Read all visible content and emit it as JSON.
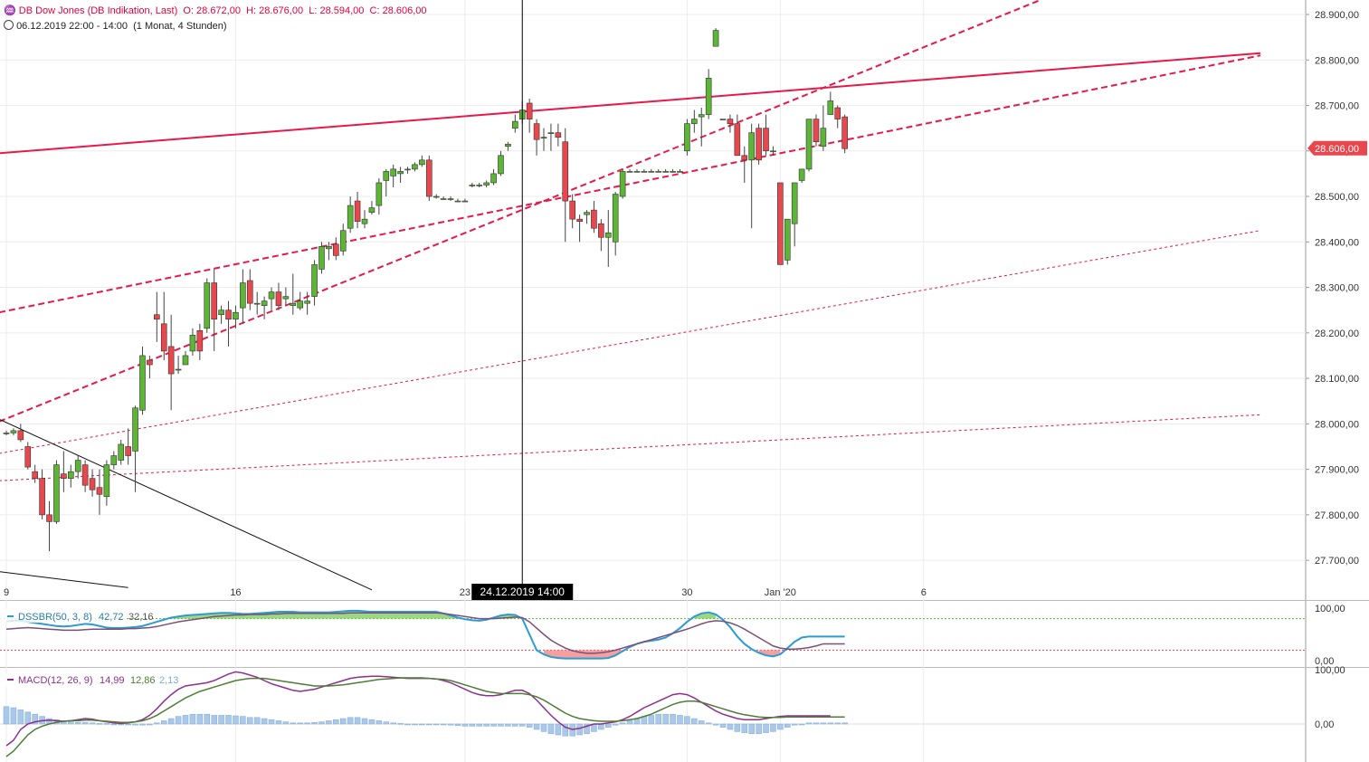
{
  "header": {
    "instrument_icon": "chart-logo-icon",
    "instrument": "DB Dow Jones (DB Indikation, Last)",
    "open": "O: 28.672,00",
    "high": "H: 28.676,00",
    "low": "L: 28.594,00",
    "close": "C: 28.606,00",
    "range_icon": "clock-icon",
    "range": "06.12.2019 22:00 - 14:00",
    "interval": "(1 Monat, 4 Stunden)"
  },
  "colors": {
    "up": "#5cb534",
    "down": "#e8484d",
    "trendline": "#e8194a",
    "crosshair": "#000000",
    "dss_fast": "#2b9bd2",
    "dss_slow": "#7a4f7a",
    "macd": "#8e2f8e",
    "signal": "#4e7d35",
    "histogram": "#a9c8ea"
  },
  "price_panel": {
    "current_price": "28.606,00",
    "crosshair_label": "24.12.2019 14:00"
  },
  "dss_panel": {
    "name": "DSSBR(50, 3, 8)",
    "value1": "42,72",
    "value2": "32,16",
    "ticks": [
      "100,00",
      "0,00"
    ]
  },
  "macd_panel": {
    "name": "MACD(12, 26, 9)",
    "value1": "14,99",
    "value2": "12,86",
    "value3": "2,13",
    "ticks": [
      "100,00",
      "0,00"
    ]
  },
  "chart_data": {
    "type": "candlestick",
    "y_ticks": [
      "28.900,00",
      "28.800,00",
      "28.700,00",
      "28.600,00",
      "28.500,00",
      "28.400,00",
      "28.300,00",
      "28.200,00",
      "28.100,00",
      "28.000,00",
      "27.900,00",
      "27.800,00",
      "27.700,00"
    ],
    "y_tick_values": [
      28900,
      28800,
      28700,
      28600,
      28500,
      28400,
      28300,
      28200,
      28100,
      28000,
      27900,
      27800,
      27700
    ],
    "ylim": [
      27640,
      28935
    ],
    "x_ticks": [
      "9",
      "16",
      "23",
      "30",
      "Jan '20",
      "6"
    ],
    "x_tick_bars": [
      0,
      32,
      64,
      95,
      108,
      128
    ],
    "candles": [
      [
        27980,
        27985,
        27975,
        27980
      ],
      [
        27980,
        27990,
        27975,
        27985
      ],
      [
        27985,
        28000,
        27960,
        27965
      ],
      [
        27950,
        27960,
        27900,
        27905
      ],
      [
        27895,
        27910,
        27870,
        27880
      ],
      [
        27880,
        27900,
        27790,
        27800
      ],
      [
        27800,
        27830,
        27720,
        27785
      ],
      [
        27785,
        27920,
        27780,
        27910
      ],
      [
        27890,
        27940,
        27850,
        27880
      ],
      [
        27880,
        27910,
        27860,
        27895
      ],
      [
        27895,
        27930,
        27880,
        27920
      ],
      [
        27910,
        27920,
        27850,
        27865
      ],
      [
        27880,
        27900,
        27840,
        27855
      ],
      [
        27860,
        27900,
        27800,
        27845
      ],
      [
        27840,
        27920,
        27820,
        27910
      ],
      [
        27910,
        27940,
        27900,
        27930
      ],
      [
        27920,
        27965,
        27910,
        27955
      ],
      [
        27950,
        27990,
        27910,
        27930
      ],
      [
        27940,
        28040,
        27850,
        28035
      ],
      [
        28030,
        28170,
        28020,
        28150
      ],
      [
        28140,
        28150,
        28100,
        28130
      ],
      [
        28240,
        28290,
        28180,
        28230
      ],
      [
        28220,
        28290,
        28140,
        28160
      ],
      [
        28170,
        28240,
        28030,
        28110
      ],
      [
        28120,
        28150,
        28110,
        28120
      ],
      [
        28130,
        28160,
        28130,
        28150
      ],
      [
        28160,
        28210,
        28150,
        28195
      ],
      [
        28205,
        28220,
        28140,
        28160
      ],
      [
        28210,
        28320,
        28200,
        28310
      ],
      [
        28310,
        28340,
        28160,
        28230
      ],
      [
        28240,
        28260,
        28220,
        28250
      ],
      [
        28250,
        28270,
        28170,
        28230
      ],
      [
        28230,
        28260,
        28210,
        28245
      ],
      [
        28255,
        28340,
        28220,
        28310
      ],
      [
        28315,
        28340,
        28250,
        28265
      ],
      [
        28265,
        28290,
        28240,
        28265
      ],
      [
        28260,
        28280,
        28230,
        28270
      ],
      [
        28275,
        28300,
        28250,
        28290
      ],
      [
        28290,
        28310,
        28250,
        28260
      ],
      [
        28275,
        28300,
        28260,
        28280
      ],
      [
        28260,
        28330,
        28240,
        28265
      ],
      [
        28255,
        28290,
        28250,
        28270
      ],
      [
        28265,
        28290,
        28240,
        28270
      ],
      [
        28280,
        28360,
        28260,
        28350
      ],
      [
        28340,
        28400,
        28330,
        28390
      ],
      [
        28385,
        28400,
        28360,
        28390
      ],
      [
        28395,
        28410,
        28360,
        28370
      ],
      [
        28380,
        28440,
        28370,
        28425
      ],
      [
        28430,
        28500,
        28420,
        28480
      ],
      [
        28490,
        28510,
        28430,
        28445
      ],
      [
        28440,
        28470,
        28430,
        28450
      ],
      [
        28465,
        28490,
        28460,
        28475
      ],
      [
        28480,
        28540,
        28460,
        28530
      ],
      [
        28535,
        28560,
        28500,
        28555
      ],
      [
        28545,
        28570,
        28520,
        28560
      ],
      [
        28550,
        28565,
        28530,
        28555
      ],
      [
        28560,
        28565,
        28550,
        28560
      ],
      [
        28560,
        28575,
        28555,
        28570
      ],
      [
        28570,
        28590,
        28565,
        28580
      ],
      [
        28580,
        28590,
        28490,
        28500
      ],
      [
        28500,
        28505,
        28495,
        28500
      ],
      [
        28495,
        28500,
        28495,
        28495
      ],
      [
        28495,
        28500,
        28490,
        28495
      ],
      [
        28490,
        28495,
        28490,
        28490
      ],
      [
        28490,
        28495,
        28490,
        28490
      ],
      [
        28525,
        28530,
        28520,
        28525
      ],
      [
        28525,
        28530,
        28520,
        28525
      ],
      [
        28525,
        28535,
        28520,
        28530
      ],
      [
        28530,
        28560,
        28525,
        28550
      ],
      [
        28550,
        28600,
        28545,
        28590
      ],
      [
        28610,
        28620,
        28600,
        28615
      ],
      [
        28650,
        28680,
        28640,
        28665
      ],
      [
        28670,
        28710,
        28660,
        28690
      ],
      [
        28705,
        28715,
        28640,
        28670
      ],
      [
        28660,
        28670,
        28590,
        28625
      ],
      [
        28630,
        28650,
        28600,
        28630
      ],
      [
        28640,
        28660,
        28600,
        28640
      ],
      [
        28640,
        28660,
        28610,
        28630
      ],
      [
        28620,
        28650,
        28400,
        28490
      ],
      [
        28490,
        28505,
        28430,
        28450
      ],
      [
        28450,
        28460,
        28400,
        28445
      ],
      [
        28460,
        28470,
        28440,
        28465
      ],
      [
        28470,
        28490,
        28420,
        28430
      ],
      [
        28440,
        28450,
        28380,
        28410
      ],
      [
        28410,
        28470,
        28345,
        28420
      ],
      [
        28400,
        28510,
        28370,
        28505
      ],
      [
        28500,
        28560,
        28495,
        28555
      ],
      [
        28555,
        28560,
        28555,
        28555
      ],
      [
        28555,
        28560,
        28555,
        28555
      ],
      [
        28555,
        28560,
        28555,
        28555
      ],
      [
        28555,
        28560,
        28555,
        28555
      ],
      [
        28555,
        28560,
        28555,
        28555
      ],
      [
        28555,
        28560,
        28555,
        28555
      ],
      [
        28555,
        28560,
        28555,
        28555
      ],
      [
        28555,
        28560,
        28555,
        28555
      ],
      [
        28600,
        28670,
        28590,
        28660
      ],
      [
        28660,
        28690,
        28640,
        28670
      ],
      [
        28675,
        28695,
        28610,
        28680
      ],
      [
        28680,
        28780,
        28670,
        28760
      ],
      [
        28830,
        28870,
        28830,
        28865
      ],
      [
        28670,
        28670,
        28670,
        28670
      ],
      [
        28670,
        28680,
        28640,
        28660
      ],
      [
        28660,
        28680,
        28600,
        28590
      ],
      [
        28590,
        28610,
        28530,
        28580
      ],
      [
        28580,
        28660,
        28430,
        28640
      ],
      [
        28650,
        28660,
        28570,
        28580
      ],
      [
        28650,
        28680,
        28590,
        28600
      ],
      [
        28600,
        28610,
        28590,
        28600
      ],
      [
        28530,
        28530,
        28360,
        28350
      ],
      [
        28360,
        28450,
        28350,
        28450
      ],
      [
        28440,
        28530,
        28390,
        28530
      ],
      [
        28535,
        28560,
        28530,
        28560
      ],
      [
        28560,
        28670,
        28555,
        28670
      ],
      [
        28670,
        28680,
        28610,
        28620
      ],
      [
        28610,
        28700,
        28600,
        28650
      ],
      [
        28680,
        28730,
        28680,
        28710
      ],
      [
        28695,
        28700,
        28650,
        28670
      ],
      [
        28675,
        28680,
        28595,
        28605
      ]
    ],
    "trendlines": [
      {
        "style": "solid",
        "from": [
          -1,
          28595
        ],
        "to": [
          175,
          28815
        ]
      },
      {
        "style": "dashed",
        "from": [
          -1,
          28245
        ],
        "to": [
          175,
          28810
        ]
      },
      {
        "style": "dashed",
        "from": [
          -1,
          28005
        ],
        "to": [
          144,
          28930
        ]
      },
      {
        "style": "dotted",
        "from": [
          -1,
          27935
        ],
        "to": [
          175,
          28425
        ]
      },
      {
        "style": "dotted",
        "from": [
          -1,
          27875
        ],
        "to": [
          175,
          28020
        ]
      }
    ],
    "black_lines": [
      {
        "from": [
          -1,
          28010
        ],
        "to": [
          51,
          27635
        ]
      },
      {
        "from": [
          -1,
          27675
        ],
        "to": [
          17,
          27640
        ]
      }
    ],
    "crosshair_bar": 72,
    "dss_fast": [
      75,
      76,
      76,
      74,
      72,
      70,
      68,
      66,
      65,
      66,
      68,
      70,
      69,
      66,
      63,
      62,
      62,
      63,
      64,
      66,
      70,
      74,
      78,
      82,
      84,
      86,
      87,
      88,
      89,
      90,
      91,
      91,
      90,
      89,
      89,
      90,
      91,
      92,
      93,
      93,
      93,
      92,
      92,
      92,
      92,
      92,
      93,
      94,
      95,
      95,
      94,
      93,
      93,
      93,
      93,
      93,
      93,
      93,
      93,
      93,
      93,
      90,
      86,
      82,
      79,
      77,
      76,
      78,
      82,
      86,
      88,
      87,
      80,
      50,
      20,
      12,
      7,
      5,
      4,
      4,
      4,
      4,
      4,
      4,
      5,
      10,
      18,
      26,
      32,
      36,
      38,
      40,
      44,
      52,
      62,
      74,
      84,
      90,
      92,
      88,
      78,
      64,
      46,
      32,
      22,
      15,
      10,
      8,
      12,
      24,
      36,
      44,
      46,
      46,
      46,
      46,
      46,
      46
    ],
    "dss_slow": [
      60,
      61,
      62,
      63,
      62,
      61,
      60,
      59,
      58,
      58,
      58,
      59,
      60,
      60,
      60,
      60,
      60,
      61,
      61,
      62,
      63,
      65,
      68,
      71,
      74,
      76,
      78,
      80,
      82,
      84,
      85,
      86,
      87,
      87,
      88,
      88,
      88,
      89,
      89,
      90,
      90,
      90,
      90,
      90,
      90,
      90,
      90,
      90,
      91,
      91,
      91,
      91,
      91,
      91,
      91,
      91,
      91,
      91,
      91,
      91,
      91,
      90,
      88,
      86,
      84,
      82,
      80,
      80,
      80,
      81,
      82,
      83,
      82,
      74,
      62,
      50,
      39,
      31,
      24,
      19,
      16,
      14,
      14,
      15,
      17,
      20,
      24,
      28,
      32,
      36,
      40,
      44,
      48,
      52,
      56,
      60,
      65,
      70,
      74,
      76,
      75,
      72,
      67,
      60,
      52,
      44,
      36,
      28,
      24,
      22,
      22,
      23,
      25,
      28,
      32,
      32,
      32,
      32
    ],
    "macd": [
      -40,
      -30,
      -10,
      0,
      4,
      6,
      7,
      6,
      5,
      6,
      8,
      10,
      9,
      6,
      4,
      2,
      1,
      2,
      4,
      8,
      16,
      28,
      42,
      54,
      64,
      70,
      72,
      74,
      76,
      80,
      86,
      92,
      96,
      94,
      90,
      86,
      80,
      74,
      70,
      66,
      62,
      60,
      62,
      64,
      68,
      72,
      76,
      80,
      84,
      86,
      87,
      88,
      88,
      87,
      86,
      85,
      84,
      84,
      84,
      84,
      83,
      80,
      76,
      70,
      64,
      58,
      54,
      52,
      52,
      54,
      58,
      62,
      62,
      56,
      44,
      30,
      16,
      4,
      -6,
      -10,
      -8,
      -4,
      0,
      0,
      2,
      4,
      8,
      14,
      22,
      30,
      36,
      42,
      48,
      54,
      56,
      54,
      48,
      40,
      32,
      24,
      18,
      14,
      10,
      8,
      8,
      8,
      10,
      12,
      14,
      15,
      15,
      15,
      15,
      15,
      15,
      15
    ],
    "signal": [
      -60,
      -50,
      -35,
      -20,
      -10,
      -4,
      0,
      3,
      5,
      6,
      6,
      7,
      7,
      6,
      5,
      4,
      3,
      3,
      4,
      6,
      10,
      16,
      24,
      32,
      40,
      48,
      54,
      60,
      64,
      68,
      72,
      76,
      80,
      82,
      84,
      84,
      84,
      82,
      80,
      78,
      76,
      74,
      72,
      70,
      70,
      70,
      71,
      72,
      74,
      76,
      78,
      80,
      82,
      83,
      84,
      85,
      85,
      85,
      85,
      84,
      83,
      82,
      80,
      76,
      72,
      68,
      64,
      60,
      58,
      56,
      56,
      56,
      56,
      54,
      50,
      44,
      36,
      28,
      20,
      14,
      10,
      8,
      6,
      5,
      5,
      5,
      6,
      8,
      10,
      14,
      18,
      24,
      30,
      36,
      40,
      42,
      42,
      40,
      36,
      32,
      28,
      24,
      20,
      17,
      15,
      13,
      12,
      12,
      12,
      13,
      13,
      13,
      13,
      13,
      13,
      13,
      13,
      13
    ],
    "histogram": [
      32,
      30,
      26,
      22,
      18,
      14,
      10,
      8,
      6,
      4,
      3,
      3,
      2,
      1,
      1,
      0,
      0,
      -1,
      -2,
      -2,
      -1,
      2,
      6,
      10,
      14,
      16,
      18,
      18,
      18,
      16,
      16,
      16,
      15,
      14,
      12,
      12,
      10,
      8,
      6,
      4,
      2,
      2,
      2,
      3,
      4,
      6,
      8,
      10,
      12,
      12,
      10,
      8,
      6,
      4,
      2,
      1,
      0,
      0,
      0,
      0,
      0,
      -1,
      -2,
      -3,
      -4,
      -4,
      -4,
      -4,
      -4,
      -4,
      -4,
      -4,
      -4,
      -6,
      -10,
      -14,
      -18,
      -20,
      -22,
      -22,
      -20,
      -18,
      -14,
      -10,
      -6,
      -2,
      2,
      6,
      10,
      14,
      16,
      18,
      18,
      18,
      16,
      14,
      10,
      6,
      2,
      -2,
      -6,
      -10,
      -14,
      -16,
      -18,
      -18,
      -16,
      -14,
      -10,
      -6,
      -2,
      0,
      2,
      2,
      2,
      2,
      2,
      2
    ]
  }
}
